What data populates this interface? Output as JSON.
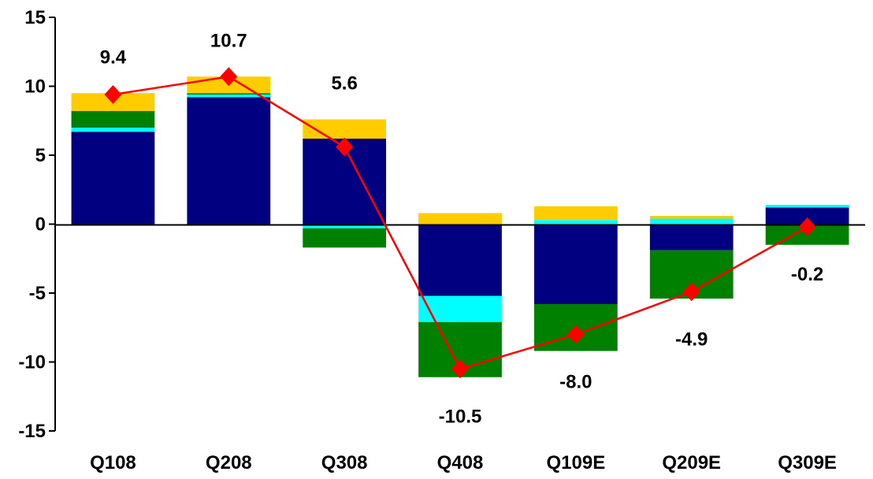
{
  "chart_data": {
    "type": "bar",
    "stacked": true,
    "categories": [
      "Q108",
      "Q208",
      "Q308",
      "Q408",
      "Q109E",
      "Q209E",
      "Q309E"
    ],
    "series": [
      {
        "color": "#000080",
        "values": [
          6.7,
          9.2,
          6.2,
          -5.2,
          -5.8,
          -1.9,
          1.2
        ]
      },
      {
        "color": "#00FFFF",
        "values": [
          0.3,
          0.2,
          -0.3,
          -1.9,
          0.3,
          0.4,
          0.2
        ]
      },
      {
        "color": "#008000",
        "values": [
          1.2,
          0.1,
          -1.4,
          -4.0,
          -3.4,
          -3.5,
          -1.5
        ]
      },
      {
        "color": "#FFCC00",
        "values": [
          1.3,
          1.2,
          1.4,
          0.8,
          1.0,
          0.2,
          0.0
        ]
      }
    ],
    "line": {
      "type": "line",
      "color": "#FF0000",
      "marker": "diamond",
      "values": [
        9.4,
        10.7,
        5.6,
        -10.5,
        -8.0,
        -4.9,
        -0.2
      ],
      "labels": [
        "9.4",
        "10.7",
        "5.6",
        "-10.5",
        "-8.0",
        "-4.9",
        "-0.2"
      ]
    },
    "yticks": [
      "15",
      "10",
      "5",
      "0",
      "-5",
      "-10",
      "-15"
    ],
    "ylim": [
      -15,
      15
    ],
    "grid": false,
    "legend": "none"
  }
}
